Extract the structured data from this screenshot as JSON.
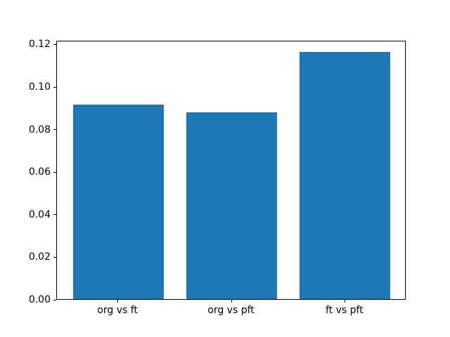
{
  "chart_data": {
    "type": "bar",
    "categories": [
      "org vs ft",
      "org vs pft",
      "ft vs pft"
    ],
    "values": [
      0.0913,
      0.0877,
      0.1163
    ],
    "title": "",
    "xlabel": "",
    "ylabel": "",
    "ylim": [
      0,
      0.1218
    ],
    "xlim": [
      -0.54,
      2.54
    ],
    "yticks": [
      0.0,
      0.02,
      0.04,
      0.06,
      0.08,
      0.1,
      0.12
    ],
    "ytick_labels": [
      "0.00",
      "0.02",
      "0.04",
      "0.06",
      "0.08",
      "0.10",
      "0.12"
    ],
    "bar_width": 0.8,
    "bar_color": "#1f77b4",
    "grid": false,
    "legend_position": "none",
    "background_color": "#ffffff",
    "spine_color": "#000000"
  }
}
